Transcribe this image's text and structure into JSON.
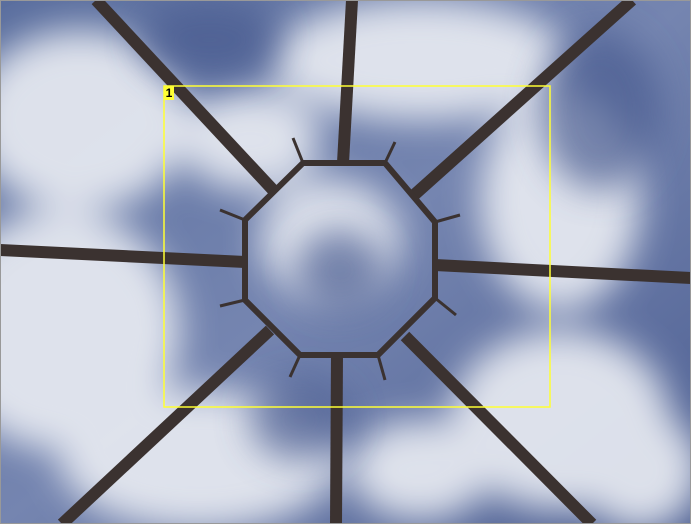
{
  "annotations": [
    {
      "label": "1"
    }
  ]
}
